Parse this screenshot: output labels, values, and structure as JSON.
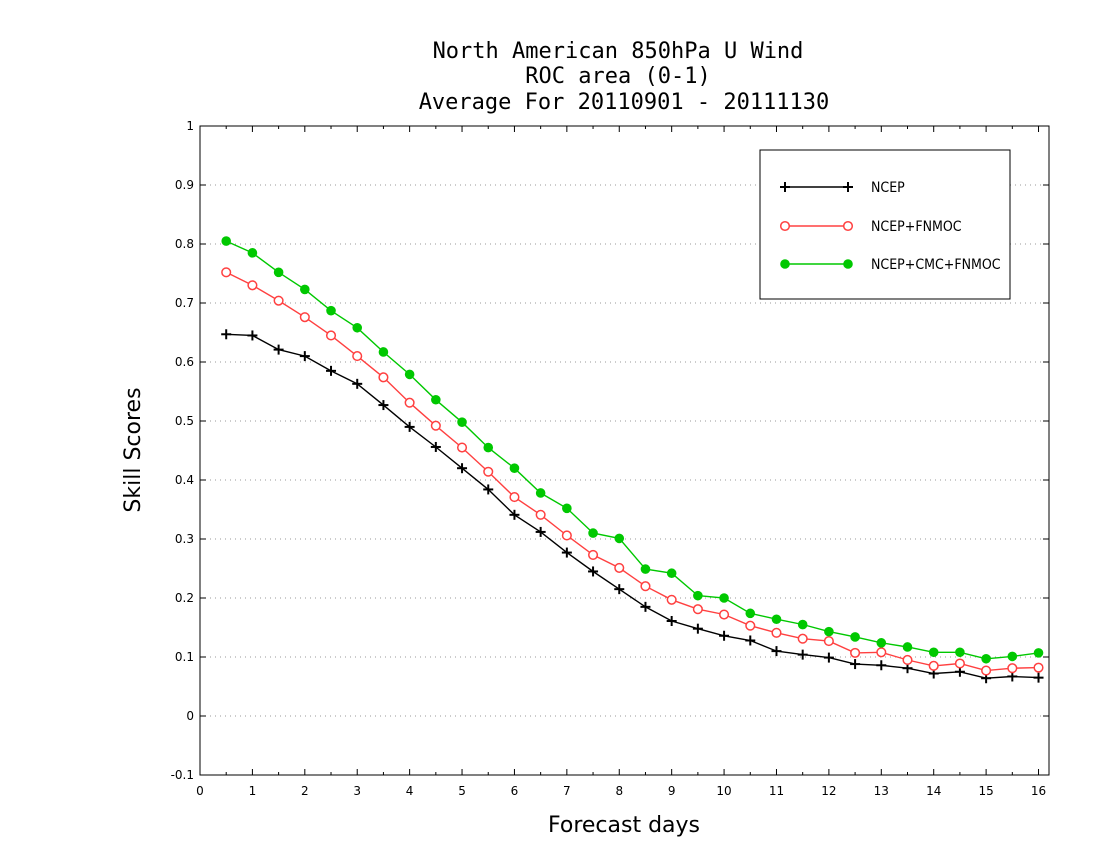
{
  "chart_data": {
    "type": "line",
    "title": [
      "North American 850hPa U Wind",
      "ROC area (0-1)",
      "Average For 20110901 - 20111130"
    ],
    "xlabel": "Forecast days",
    "ylabel": "Skill Scores",
    "xlim": [
      0,
      16.2
    ],
    "ylim": [
      -0.1,
      1
    ],
    "xticks": [
      "0",
      "1",
      "2",
      "3",
      "4",
      "5",
      "6",
      "7",
      "8",
      "9",
      "10",
      "11",
      "12",
      "13",
      "14",
      "15",
      "16"
    ],
    "yticks": [
      "-0.1",
      "0",
      "0.1",
      "0.2",
      "0.3",
      "0.4",
      "0.5",
      "0.6",
      "0.7",
      "0.8",
      "0.9",
      "1"
    ],
    "grid": true,
    "legend_position": "top-right",
    "x": [
      0.5,
      1,
      1.5,
      2,
      2.5,
      3,
      3.5,
      4,
      4.5,
      5,
      5.5,
      6,
      6.5,
      7,
      7.5,
      8,
      8.5,
      9,
      9.5,
      10,
      10.5,
      11,
      11.5,
      12,
      12.5,
      13,
      13.5,
      14,
      14.5,
      15,
      15.5,
      16
    ],
    "series": [
      {
        "name": "NCEP",
        "color": "#000000",
        "marker": "plus",
        "values": [
          0.647,
          0.645,
          0.621,
          0.61,
          0.585,
          0.563,
          0.527,
          0.49,
          0.456,
          0.42,
          0.384,
          0.341,
          0.312,
          0.277,
          0.245,
          0.215,
          0.185,
          0.161,
          0.148,
          0.136,
          0.128,
          0.11,
          0.104,
          0.099,
          0.088,
          0.086,
          0.081,
          0.072,
          0.075,
          0.064,
          0.067,
          0.065
        ]
      },
      {
        "name": "NCEP+FNMOC",
        "color": "#ff4040",
        "marker": "open-circle",
        "values": [
          0.752,
          0.73,
          0.704,
          0.676,
          0.645,
          0.61,
          0.574,
          0.531,
          0.492,
          0.455,
          0.414,
          0.371,
          0.341,
          0.306,
          0.273,
          0.251,
          0.22,
          0.197,
          0.181,
          0.172,
          0.153,
          0.141,
          0.131,
          0.127,
          0.107,
          0.108,
          0.095,
          0.085,
          0.089,
          0.077,
          0.081,
          0.082
        ]
      },
      {
        "name": "NCEP+CMC+FNMOC",
        "color": "#00c800",
        "marker": "filled-circle",
        "values": [
          0.805,
          0.785,
          0.752,
          0.723,
          0.687,
          0.658,
          0.617,
          0.579,
          0.536,
          0.498,
          0.455,
          0.42,
          0.378,
          0.352,
          0.31,
          0.301,
          0.249,
          0.242,
          0.204,
          0.2,
          0.174,
          0.164,
          0.155,
          0.143,
          0.134,
          0.124,
          0.117,
          0.108,
          0.108,
          0.097,
          0.101,
          0.107
        ]
      }
    ]
  }
}
